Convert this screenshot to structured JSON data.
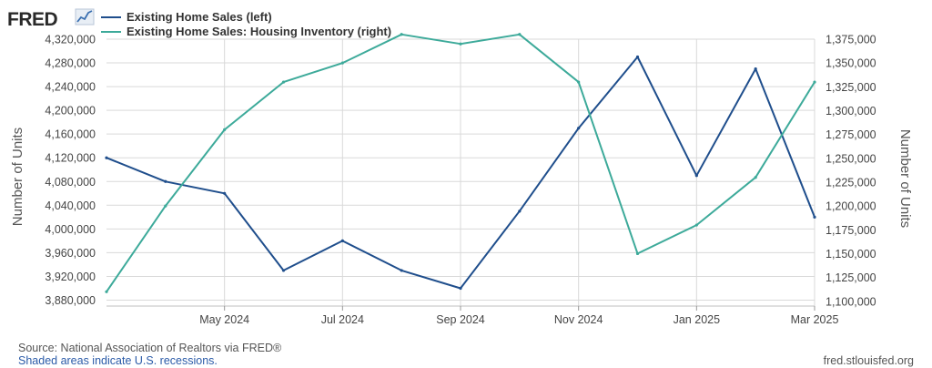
{
  "header": {
    "logo_text": "FRED"
  },
  "colors": {
    "left_series": "#1f4e8c",
    "right_series": "#3daa9a",
    "grid": "#d9d9d9",
    "axis_text": "#444444"
  },
  "footer": {
    "source": "Source: National Association of Realtors via FRED®",
    "recession_note": "Shaded areas indicate U.S. recessions.",
    "site": "fred.stlouisfed.org"
  },
  "chart_data": {
    "type": "line",
    "title": "",
    "xlabel": "",
    "ylabel_left": "Number of Units",
    "ylabel_right": "Number of Units",
    "legend_position": "top-left",
    "grid": true,
    "x": [
      "2024-03",
      "2024-04",
      "2024-05",
      "2024-06",
      "2024-07",
      "2024-08",
      "2024-09",
      "2024-10",
      "2024-11",
      "2024-12",
      "2025-01",
      "2025-02",
      "2025-03"
    ],
    "x_ticks": [
      {
        "date": "2024-05",
        "label": "May 2024"
      },
      {
        "date": "2024-07",
        "label": "Jul 2024"
      },
      {
        "date": "2024-09",
        "label": "Sep 2024"
      },
      {
        "date": "2024-11",
        "label": "Nov 2024"
      },
      {
        "date": "2025-01",
        "label": "Jan 2025"
      },
      {
        "date": "2025-03",
        "label": "Mar 2025"
      }
    ],
    "y_left": {
      "range": [
        3870000,
        4320000
      ],
      "ticks": [
        3880000,
        3920000,
        3960000,
        4000000,
        4040000,
        4080000,
        4120000,
        4160000,
        4200000,
        4240000,
        4280000,
        4320000
      ],
      "tick_labels": [
        "3,880,000",
        "3,920,000",
        "3,960,000",
        "4,000,000",
        "4,040,000",
        "4,080,000",
        "4,120,000",
        "4,160,000",
        "4,200,000",
        "4,240,000",
        "4,280,000",
        "4,320,000"
      ]
    },
    "y_right": {
      "range": [
        1095000,
        1375000
      ],
      "ticks": [
        1100000,
        1125000,
        1150000,
        1175000,
        1200000,
        1225000,
        1250000,
        1275000,
        1300000,
        1325000,
        1350000,
        1375000
      ],
      "tick_labels": [
        "1,100,000",
        "1,125,000",
        "1,150,000",
        "1,175,000",
        "1,200,000",
        "1,225,000",
        "1,250,000",
        "1,275,000",
        "1,300,000",
        "1,325,000",
        "1,350,000",
        "1,375,000"
      ]
    },
    "series": [
      {
        "name": "Existing Home Sales (left)",
        "axis": "left",
        "values": [
          4120000,
          4080000,
          4060000,
          3930000,
          3980000,
          3930000,
          3900000,
          4030000,
          4170000,
          4290000,
          4090000,
          4270000,
          4020000
        ]
      },
      {
        "name": "Existing Home Sales: Housing Inventory (right)",
        "axis": "right",
        "values": [
          1110000,
          1200000,
          1280000,
          1330000,
          1350000,
          1380000,
          1370000,
          1380000,
          1330000,
          1150000,
          1180000,
          1230000,
          1330000
        ]
      }
    ]
  }
}
